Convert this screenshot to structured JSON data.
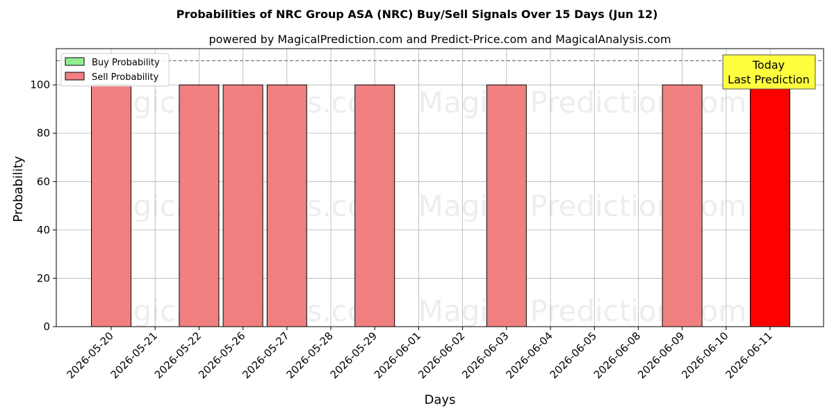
{
  "chart_data": {
    "type": "bar",
    "title": "Probabilities of NRC Group ASA (NRC) Buy/Sell Signals Over 15 Days (Jun 12)",
    "subtitle": "powered by MagicalPrediction.com and Predict-Price.com and MagicalAnalysis.com",
    "xlabel": "Days",
    "ylabel": "Probability",
    "categories": [
      "2026-05-20",
      "2026-05-21",
      "2026-05-22",
      "2026-05-26",
      "2026-05-27",
      "2026-05-28",
      "2026-05-29",
      "2026-06-01",
      "2026-06-02",
      "2026-06-03",
      "2026-06-04",
      "2026-06-05",
      "2026-06-08",
      "2026-06-09",
      "2026-06-10",
      "2026-06-11"
    ],
    "series": [
      {
        "name": "Buy Probability",
        "color": "#90ee90",
        "values": [
          0,
          0,
          0,
          0,
          0,
          0,
          0,
          0,
          0,
          0,
          0,
          0,
          0,
          0,
          0,
          0
        ]
      },
      {
        "name": "Sell Probability",
        "color": "#f08080",
        "values": [
          100,
          0,
          100,
          100,
          100,
          0,
          100,
          0,
          0,
          100,
          0,
          0,
          0,
          100,
          0,
          100
        ]
      }
    ],
    "highlight": {
      "category": "2026-06-11",
      "color": "#ff0000"
    },
    "ylim": [
      0,
      115
    ],
    "yticks": [
      0,
      20,
      40,
      60,
      80,
      100
    ],
    "reference_line": 110,
    "grid": true,
    "legend_position": "top-left",
    "annotation": {
      "line1": "Today",
      "line2": "Last Prediction",
      "color": "#ffff40"
    },
    "watermarks": [
      "MagicalAnalysis.com",
      "MagicalPrediction.com"
    ]
  }
}
